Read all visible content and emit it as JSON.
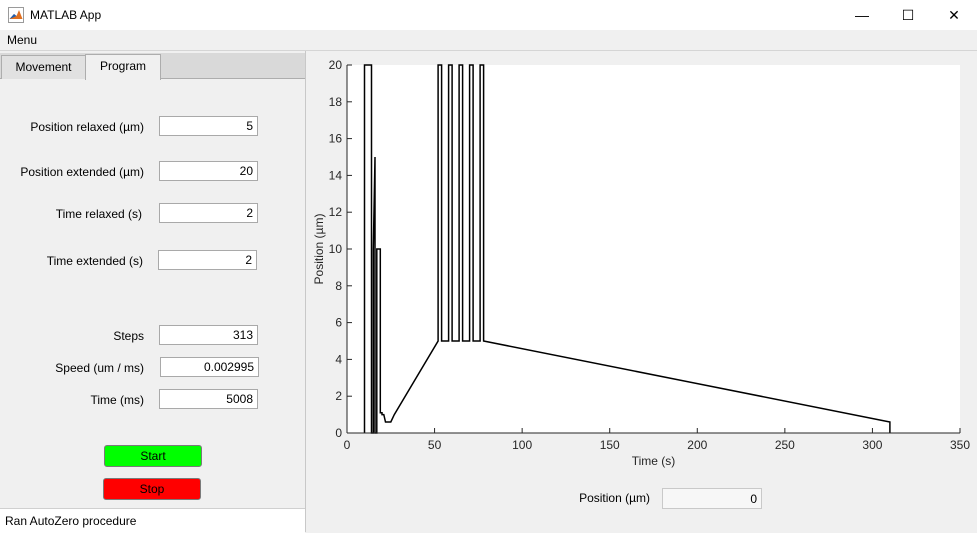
{
  "window": {
    "title": "MATLAB App",
    "icon": "matlab-logo-icon",
    "minimize_glyph": "—",
    "maximize_glyph": "☐",
    "close_glyph": "✕"
  },
  "menu": {
    "label": "Menu"
  },
  "tabs": [
    {
      "label": "Movement",
      "selected": false
    },
    {
      "label": "Program",
      "selected": true
    }
  ],
  "fields": {
    "position_relaxed": {
      "label": "Position relaxed (µm)",
      "value": "5"
    },
    "position_extended": {
      "label": "Position extended (µm)",
      "value": "20"
    },
    "time_relaxed": {
      "label": "Time relaxed (s)",
      "value": "2"
    },
    "time_extended": {
      "label": "Time extended (s)",
      "value": "2"
    },
    "steps": {
      "label": "Steps",
      "value": "313"
    },
    "speed": {
      "label": "Speed (um / ms)",
      "value": "0.002995"
    },
    "time_ms": {
      "label": "Time (ms)",
      "value": "5008"
    }
  },
  "buttons": {
    "start": "Start",
    "stop": "Stop"
  },
  "status": {
    "text": "Ran AutoZero procedure"
  },
  "position_readout": {
    "label": "Position (µm)",
    "value": "0"
  },
  "colors": {
    "start": "#00ff00",
    "stop": "#ff0000",
    "line": "#000000"
  },
  "chart_data": {
    "type": "line",
    "xlabel": "Time (s)",
    "ylabel": "Position (µm)",
    "xlim": [
      0,
      350
    ],
    "ylim": [
      0,
      20
    ],
    "xticks": [
      0,
      50,
      100,
      150,
      200,
      250,
      300,
      350
    ],
    "yticks": [
      0,
      2,
      4,
      6,
      8,
      10,
      12,
      14,
      16,
      18,
      20
    ],
    "grid": false,
    "series": [
      {
        "x": [
          10,
          10,
          14,
          14,
          15,
          15,
          16,
          16,
          17,
          17,
          19,
          19,
          20,
          20,
          21,
          22,
          24,
          25,
          27,
          52,
          52,
          54,
          54,
          58,
          58,
          60,
          60,
          64,
          64,
          66,
          66,
          70,
          70,
          72,
          72,
          76,
          76,
          78,
          78,
          310,
          310
        ],
        "y": [
          0,
          20,
          20,
          0,
          0,
          10,
          15,
          0,
          0,
          10,
          10,
          1.1,
          1.1,
          1,
          1,
          0.6,
          0.6,
          0.6,
          1,
          5,
          20,
          20,
          5,
          5,
          20,
          20,
          5,
          5,
          20,
          20,
          5,
          5,
          20,
          20,
          5,
          5,
          20,
          20,
          5,
          0.6,
          0
        ]
      }
    ]
  }
}
